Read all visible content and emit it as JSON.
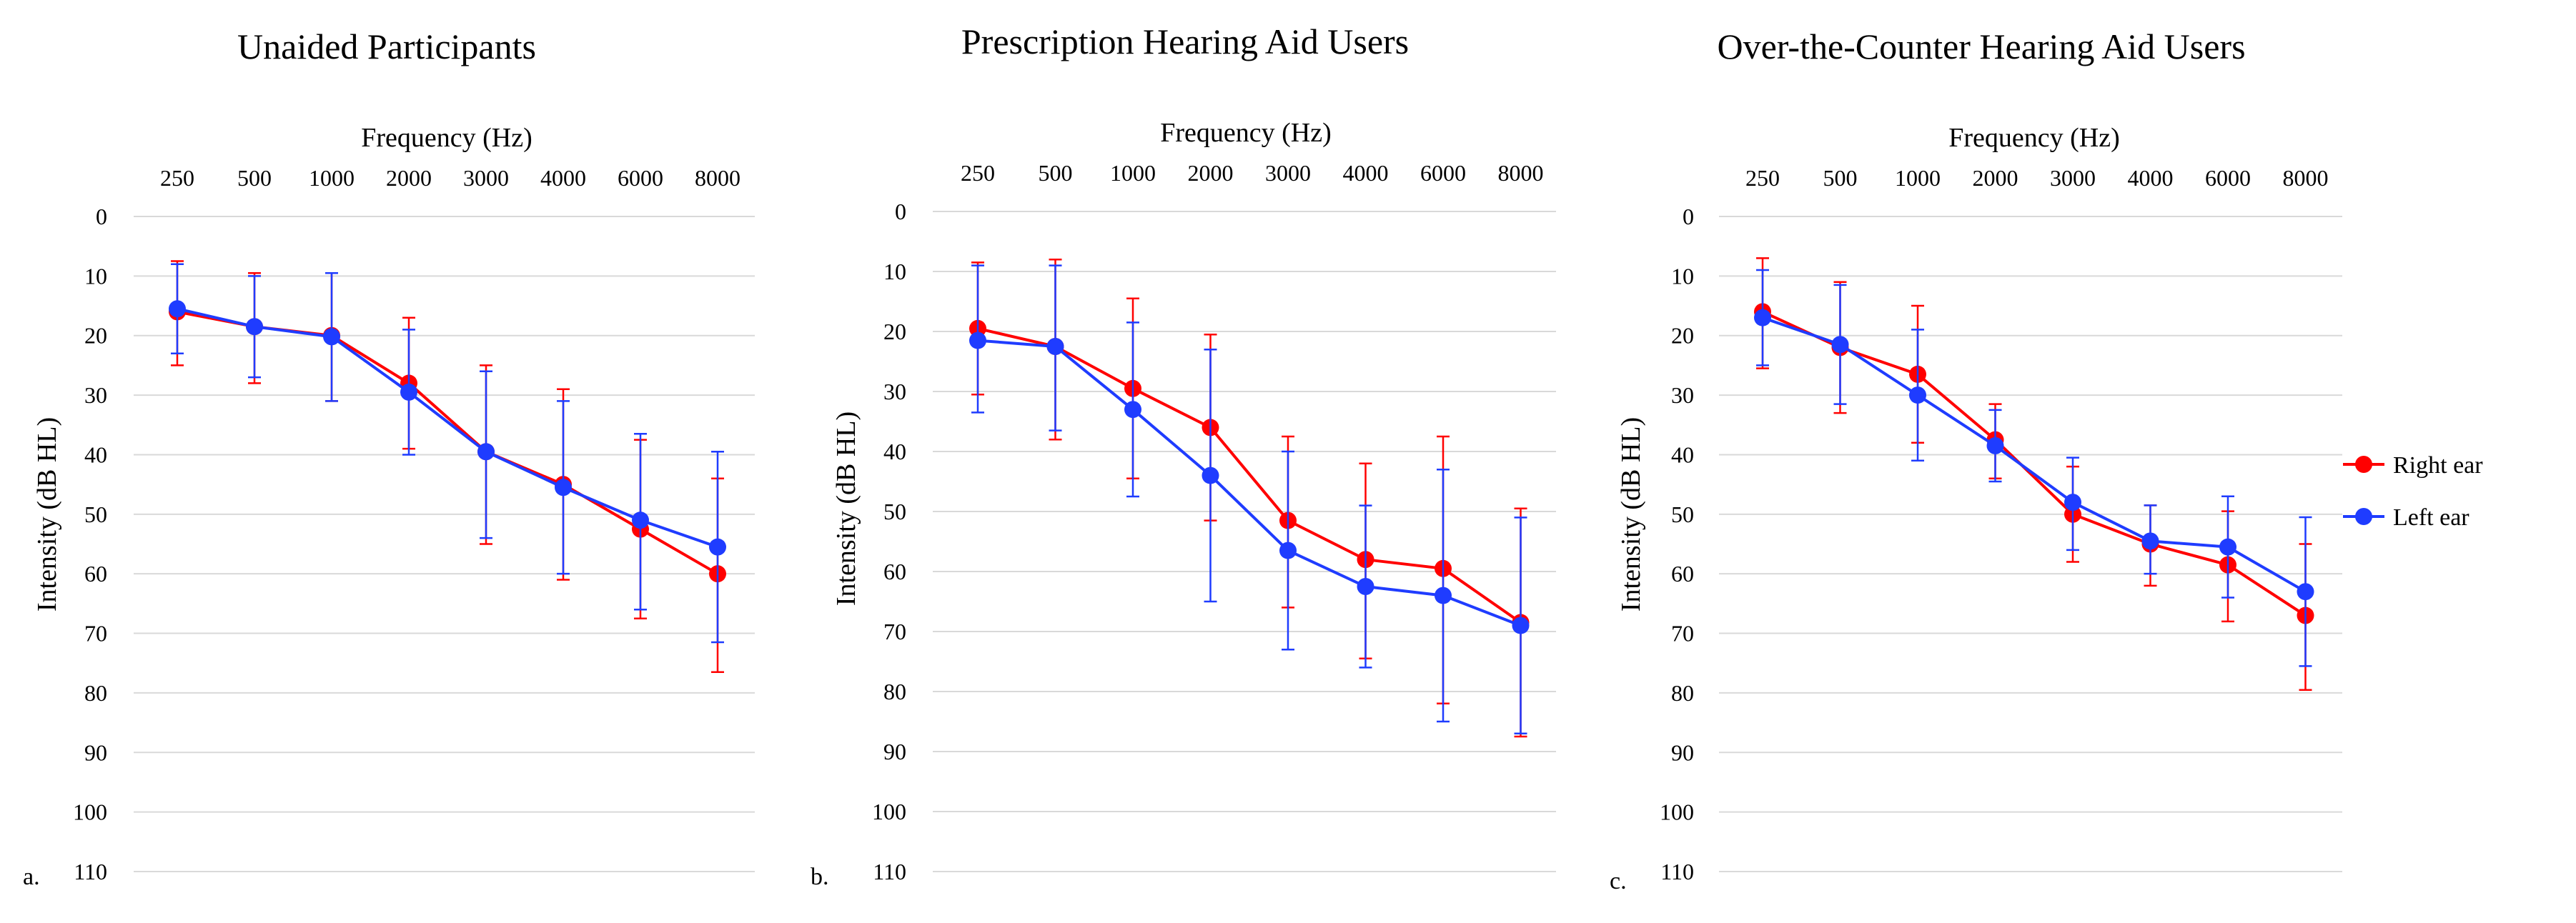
{
  "legend": {
    "right_label": "Right ear",
    "left_label": "Left ear"
  },
  "colors": {
    "right": "#ff0000",
    "left": "#1f3cff"
  },
  "chart_data": [
    {
      "type": "line",
      "panel_label": "a.",
      "title": "Unaided Participants",
      "xlabel": "Frequency (Hz)",
      "ylabel": "Intensity (dB HL)",
      "categories": [
        "250",
        "500",
        "1000",
        "2000",
        "3000",
        "4000",
        "6000",
        "8000"
      ],
      "yticks": [
        "0",
        "10",
        "20",
        "30",
        "40",
        "50",
        "60",
        "70",
        "80",
        "90",
        "100",
        "110"
      ],
      "ylim": [
        0,
        110
      ],
      "y_inverted": true,
      "series": [
        {
          "name": "Right ear",
          "values": [
            16,
            18.5,
            20,
            28,
            39.5,
            45,
            52.5,
            60
          ],
          "err_low": [
            7.5,
            9.5,
            9.5,
            17,
            25,
            29,
            37.5,
            44
          ],
          "err_high": [
            25,
            28,
            31,
            39,
            55,
            61,
            67.5,
            76.5
          ]
        },
        {
          "name": "Left ear",
          "values": [
            15.5,
            18.5,
            20.2,
            29.5,
            39.5,
            45.5,
            51,
            55.5
          ],
          "err_low": [
            8,
            10,
            9.5,
            19,
            26,
            31,
            36.5,
            39.5
          ],
          "err_high": [
            23,
            27,
            31,
            40,
            54,
            60,
            66,
            71.5
          ]
        }
      ]
    },
    {
      "type": "line",
      "panel_label": "b.",
      "title": "Prescription Hearing Aid Users",
      "xlabel": "Frequency (Hz)",
      "ylabel": "Intensity (dB HL)",
      "categories": [
        "250",
        "500",
        "1000",
        "2000",
        "3000",
        "4000",
        "6000",
        "8000"
      ],
      "yticks": [
        "0",
        "10",
        "20",
        "30",
        "40",
        "50",
        "60",
        "70",
        "80",
        "90",
        "100",
        "110"
      ],
      "ylim": [
        0,
        110
      ],
      "y_inverted": true,
      "series": [
        {
          "name": "Right ear",
          "values": [
            19.5,
            22.5,
            29.5,
            36,
            51.5,
            58,
            59.5,
            68.5
          ],
          "err_low": [
            8.5,
            8,
            14.5,
            20.5,
            37.5,
            42,
            37.5,
            49.5
          ],
          "err_high": [
            30.5,
            38,
            44.5,
            51.5,
            66,
            74.5,
            82,
            87.5
          ]
        },
        {
          "name": "Left ear",
          "values": [
            21.5,
            22.5,
            33,
            44,
            56.5,
            62.5,
            64,
            69
          ],
          "err_low": [
            9,
            9,
            18.5,
            23,
            40,
            49,
            43,
            51
          ],
          "err_high": [
            33.5,
            36.5,
            47.5,
            65,
            73,
            76,
            85,
            87
          ]
        }
      ]
    },
    {
      "type": "line",
      "panel_label": "c.",
      "title": "Over-the-Counter Hearing Aid Users",
      "xlabel": "Frequency (Hz)",
      "ylabel": "Intensity (dB HL)",
      "categories": [
        "250",
        "500",
        "1000",
        "2000",
        "3000",
        "4000",
        "6000",
        "8000"
      ],
      "yticks": [
        "0",
        "10",
        "20",
        "30",
        "40",
        "50",
        "60",
        "70",
        "80",
        "90",
        "100",
        "110"
      ],
      "ylim": [
        0,
        110
      ],
      "y_inverted": true,
      "series": [
        {
          "name": "Right ear",
          "values": [
            16,
            22,
            26.5,
            37.5,
            50,
            55,
            58.5,
            67
          ],
          "err_low": [
            7,
            11,
            15,
            31.5,
            42,
            48.5,
            49.5,
            55
          ],
          "err_high": [
            25.5,
            33,
            38,
            44,
            58,
            62,
            68,
            79.5
          ]
        },
        {
          "name": "Left ear",
          "values": [
            17,
            21.5,
            30,
            38.5,
            48,
            54.5,
            55.5,
            63
          ],
          "err_low": [
            9,
            11.5,
            19,
            32.5,
            40.5,
            48.5,
            47,
            50.5
          ],
          "err_high": [
            25,
            31.5,
            41,
            44.5,
            56,
            60,
            64,
            75.5
          ]
        }
      ]
    }
  ]
}
